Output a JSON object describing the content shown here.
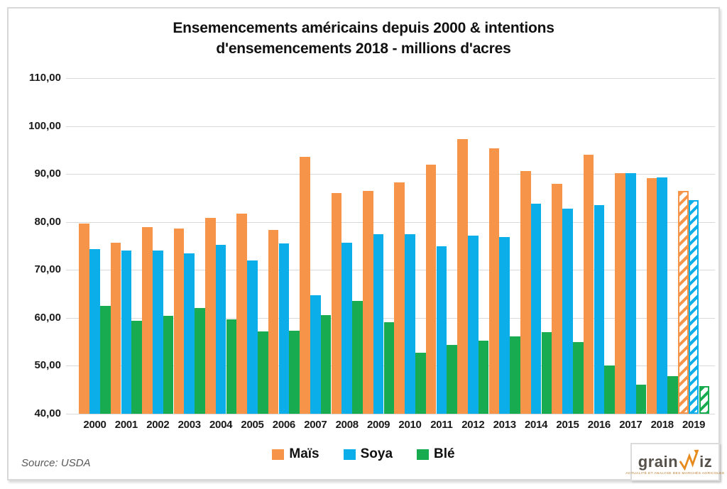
{
  "title": {
    "line1": "Ensemencements américains depuis 2000 & intentions",
    "line2": "d'ensemencements 2018 - millions d'acres"
  },
  "chart_data": {
    "type": "bar",
    "title": "Ensemencements américains depuis 2000 & intentions d'ensemencements 2018 - millions d'acres",
    "xlabel": "",
    "ylabel": "",
    "ylim": [
      40,
      110
    ],
    "ytick_step": 10,
    "ytick_labels": [
      "40,00",
      "50,00",
      "60,00",
      "70,00",
      "80,00",
      "90,00",
      "100,00",
      "110,00"
    ],
    "grid": true,
    "legend_position": "bottom",
    "categories": [
      "2000",
      "2001",
      "2002",
      "2003",
      "2004",
      "2005",
      "2006",
      "2007",
      "2008",
      "2009",
      "2010",
      "2011",
      "2012",
      "2013",
      "2014",
      "2015",
      "2016",
      "2017",
      "2018",
      "2019"
    ],
    "hatched_categories": [
      "2019"
    ],
    "series": [
      {
        "name": "Maïs",
        "color": "#F6944A",
        "values": [
          79.6,
          75.7,
          78.9,
          78.6,
          80.9,
          81.8,
          78.3,
          93.5,
          86.0,
          86.4,
          88.2,
          91.9,
          97.2,
          95.4,
          90.6,
          88.0,
          94.0,
          90.2,
          89.2,
          86.5
        ]
      },
      {
        "name": "Soya",
        "color": "#0BAEE9",
        "values": [
          74.3,
          74.1,
          74.0,
          73.4,
          75.2,
          72.0,
          75.5,
          64.7,
          75.7,
          77.5,
          77.4,
          75.0,
          77.2,
          76.8,
          83.8,
          82.7,
          83.5,
          90.1,
          89.3,
          84.5
        ]
      },
      {
        "name": "Blé",
        "color": "#18AB50",
        "values": [
          62.5,
          59.4,
          60.4,
          62.1,
          59.7,
          57.2,
          57.3,
          60.5,
          63.5,
          59.1,
          52.7,
          54.4,
          55.3,
          56.2,
          57.0,
          55.0,
          50.1,
          46.0,
          47.8,
          45.8
        ]
      }
    ]
  },
  "legend": {
    "items": [
      {
        "label": "Maïs"
      },
      {
        "label": "Soya"
      },
      {
        "label": "Blé"
      }
    ]
  },
  "source": "Source: USDA",
  "logo": {
    "grain": "grain",
    "iz": "iz",
    "tagline": "ACTUALITÉ ET ANALYSE DES MARCHÉS AGRICOLES"
  }
}
